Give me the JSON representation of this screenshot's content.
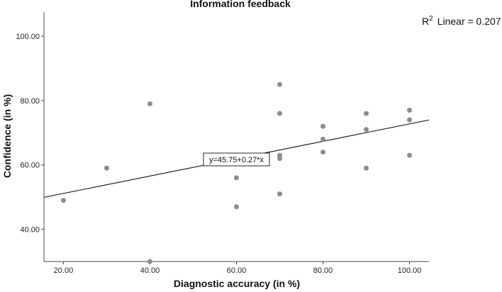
{
  "chart_data": {
    "type": "scatter",
    "title": "Information feedback",
    "xlabel": "Diagnostic accuracy (in %)",
    "ylabel": "Confidence (in %)",
    "xlim": [
      15.5,
      104.5
    ],
    "ylim": [
      30,
      107.5
    ],
    "x_ticks": [
      {
        "value": 20,
        "label": "20.00"
      },
      {
        "value": 40,
        "label": "40.00"
      },
      {
        "value": 60,
        "label": "60.00"
      },
      {
        "value": 80,
        "label": "80.00"
      },
      {
        "value": 100,
        "label": "100.00"
      }
    ],
    "y_ticks": [
      {
        "value": 40,
        "label": "40.00"
      },
      {
        "value": 60,
        "label": "60.00"
      },
      {
        "value": 80,
        "label": "80.00"
      },
      {
        "value": 100,
        "label": "100.00"
      }
    ],
    "grid": false,
    "points": [
      {
        "x": 20,
        "y": 49
      },
      {
        "x": 30,
        "y": 59
      },
      {
        "x": 40,
        "y": 79
      },
      {
        "x": 40,
        "y": 30
      },
      {
        "x": 60,
        "y": 56
      },
      {
        "x": 60,
        "y": 47
      },
      {
        "x": 70,
        "y": 85
      },
      {
        "x": 70,
        "y": 76
      },
      {
        "x": 70,
        "y": 63
      },
      {
        "x": 70,
        "y": 62
      },
      {
        "x": 70,
        "y": 51
      },
      {
        "x": 80,
        "y": 72
      },
      {
        "x": 80,
        "y": 68
      },
      {
        "x": 80,
        "y": 64
      },
      {
        "x": 90,
        "y": 76
      },
      {
        "x": 90,
        "y": 71
      },
      {
        "x": 90,
        "y": 59
      },
      {
        "x": 100,
        "y": 77
      },
      {
        "x": 100,
        "y": 74
      },
      {
        "x": 100,
        "y": 63
      }
    ],
    "fit_line": {
      "intercept": 45.75,
      "slope": 0.27,
      "equation_label": "y=45.75+0.27*x"
    },
    "r2": {
      "label": "Linear = 0.207",
      "symbol": "R",
      "superscript": "2"
    },
    "colors": {
      "points": "#8c8c8c",
      "fit_line": "#222222",
      "axis": "#444444"
    }
  }
}
